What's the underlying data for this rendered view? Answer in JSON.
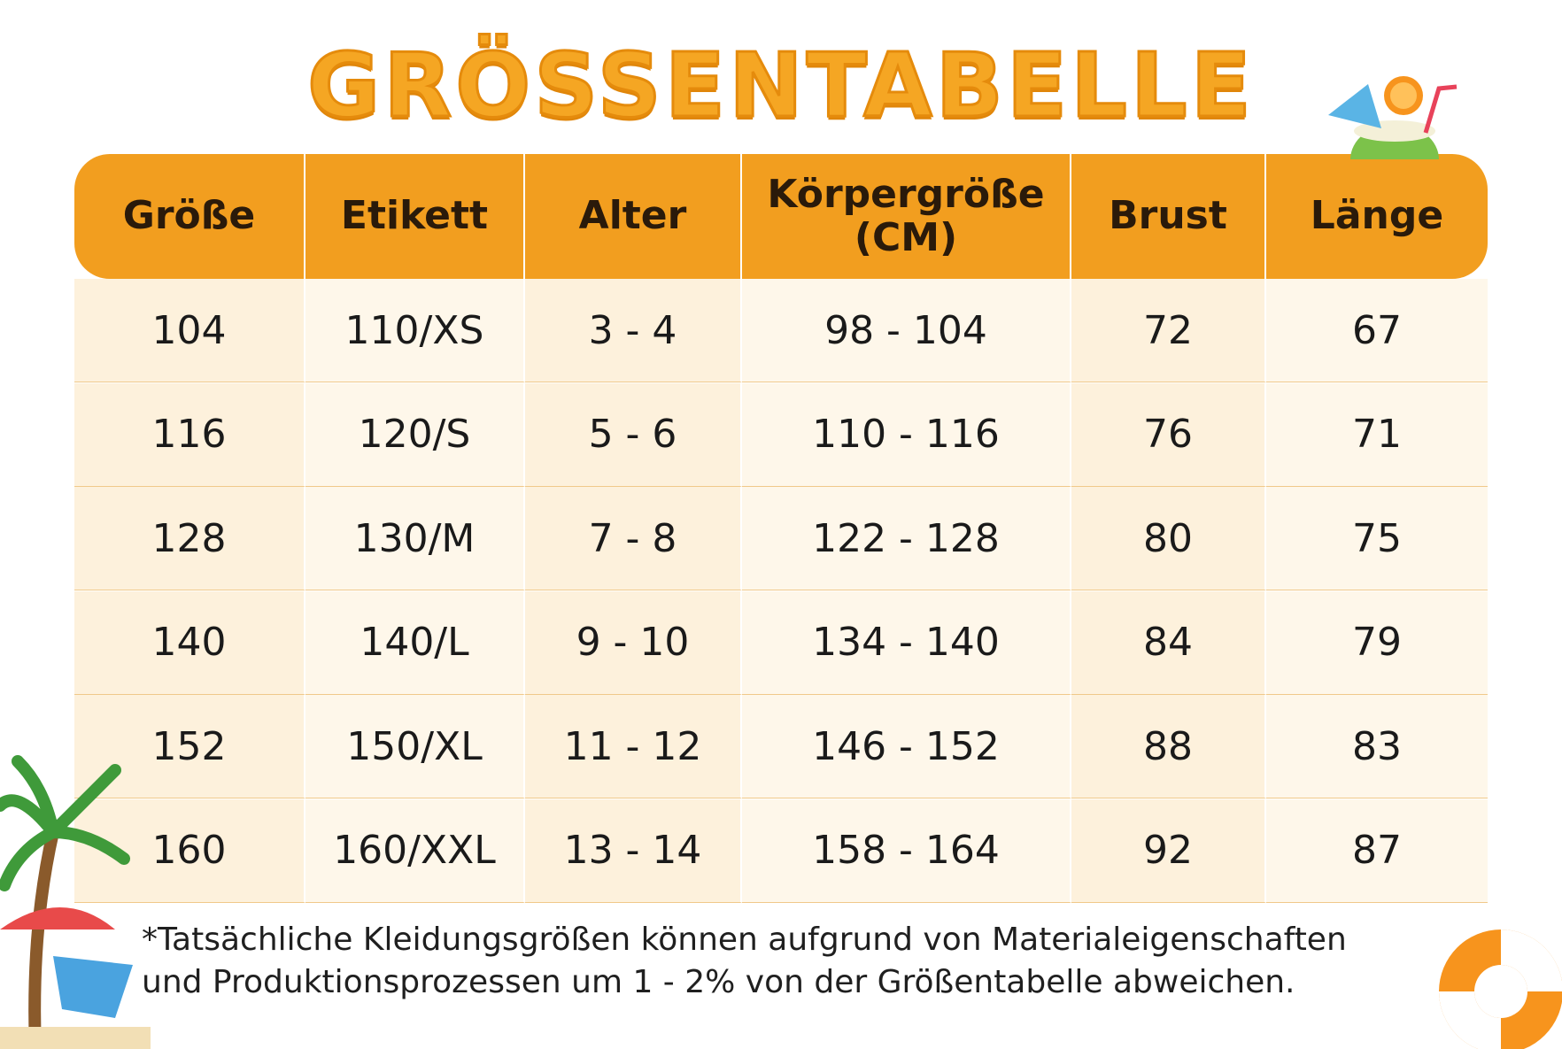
{
  "title": "GRÖSSENTABELLE",
  "table": {
    "header": [
      "Größe",
      "Etikett",
      "Alter",
      "Körpergröße\n(CM)",
      "Brust",
      "Länge"
    ],
    "rows": [
      [
        "104",
        "110/XS",
        "3 - 4",
        "98 - 104",
        "72",
        "67"
      ],
      [
        "116",
        "120/S",
        "5 - 6",
        "110 - 116",
        "76",
        "71"
      ],
      [
        "128",
        "130/M",
        "7 - 8",
        "122 - 128",
        "80",
        "75"
      ],
      [
        "140",
        "140/L",
        "9 - 10",
        "134 - 140",
        "84",
        "79"
      ],
      [
        "152",
        "150/XL",
        "11 - 12",
        "146 - 152",
        "88",
        "83"
      ],
      [
        "160",
        "160/XXL",
        "13 - 14",
        "158 - 164",
        "92",
        "87"
      ]
    ]
  },
  "footnote": "*Tatsächliche Kleidungsgrößen können aufgrund von Materialeigenschaften\nund Produktionsprozessen um 1 - 2% von der Größentabelle abweichen."
}
